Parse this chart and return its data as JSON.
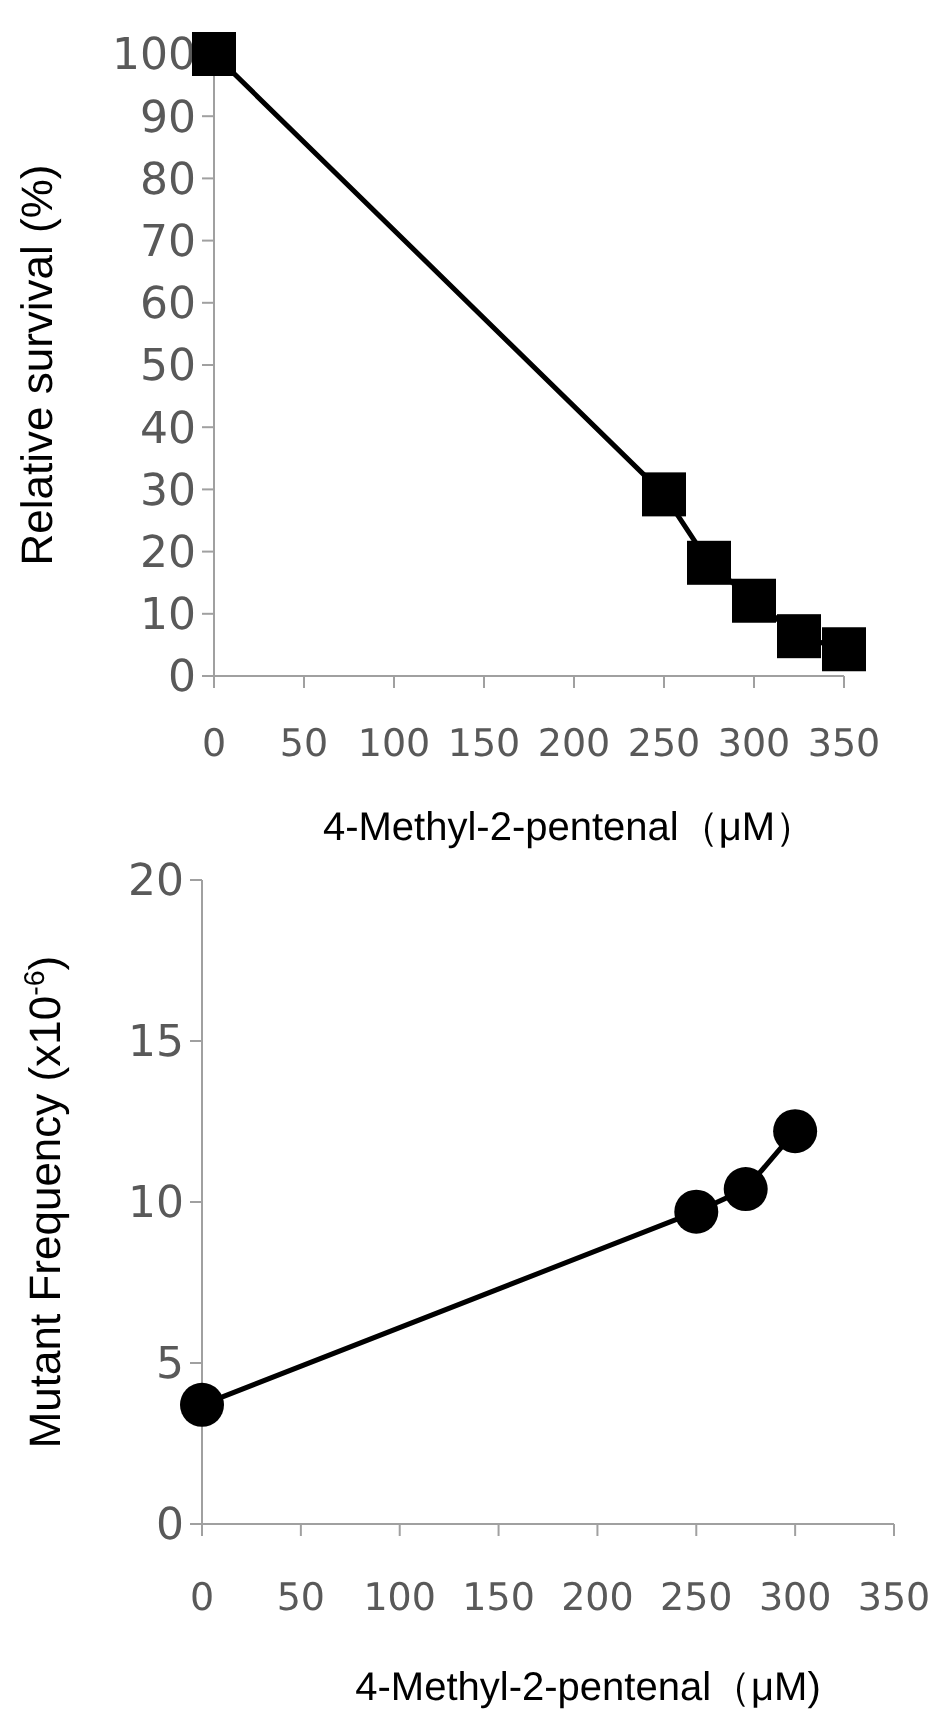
{
  "chart_data": [
    {
      "type": "line",
      "xlabel": "4-Methyl-2-pentenal（μM）",
      "ylabel": "Relative survival (%)",
      "x": [
        0,
        250,
        275,
        300,
        325,
        350
      ],
      "series": [
        {
          "color": "#000000",
          "values": [
            100,
            29.2,
            18.2,
            12.1,
            6.4,
            4.3
          ]
        }
      ],
      "xlim": [
        0,
        350
      ],
      "xticks": [
        0,
        50,
        100,
        150,
        200,
        250,
        300,
        350
      ],
      "ylim": [
        0,
        100
      ],
      "yticks": [
        0,
        10,
        20,
        30,
        40,
        50,
        60,
        70,
        80,
        90,
        100
      ],
      "marker": "square",
      "grid": false
    },
    {
      "type": "line",
      "xlabel": "4-Methyl-2-pentenal（μM)",
      "ylabel": "Mutant Frequency (x10$^{-6}$)",
      "x": [
        0,
        250,
        275,
        300
      ],
      "series": [
        {
          "color": "#000000",
          "values": [
            3.7,
            9.7,
            10.4,
            12.2
          ]
        }
      ],
      "xlim": [
        0,
        350
      ],
      "xticks": [
        0,
        50,
        100,
        150,
        200,
        250,
        300,
        350
      ],
      "ylim": [
        0,
        20
      ],
      "yticks": [
        0,
        5,
        10,
        15,
        20
      ],
      "marker": "circle",
      "grid": false
    }
  ]
}
